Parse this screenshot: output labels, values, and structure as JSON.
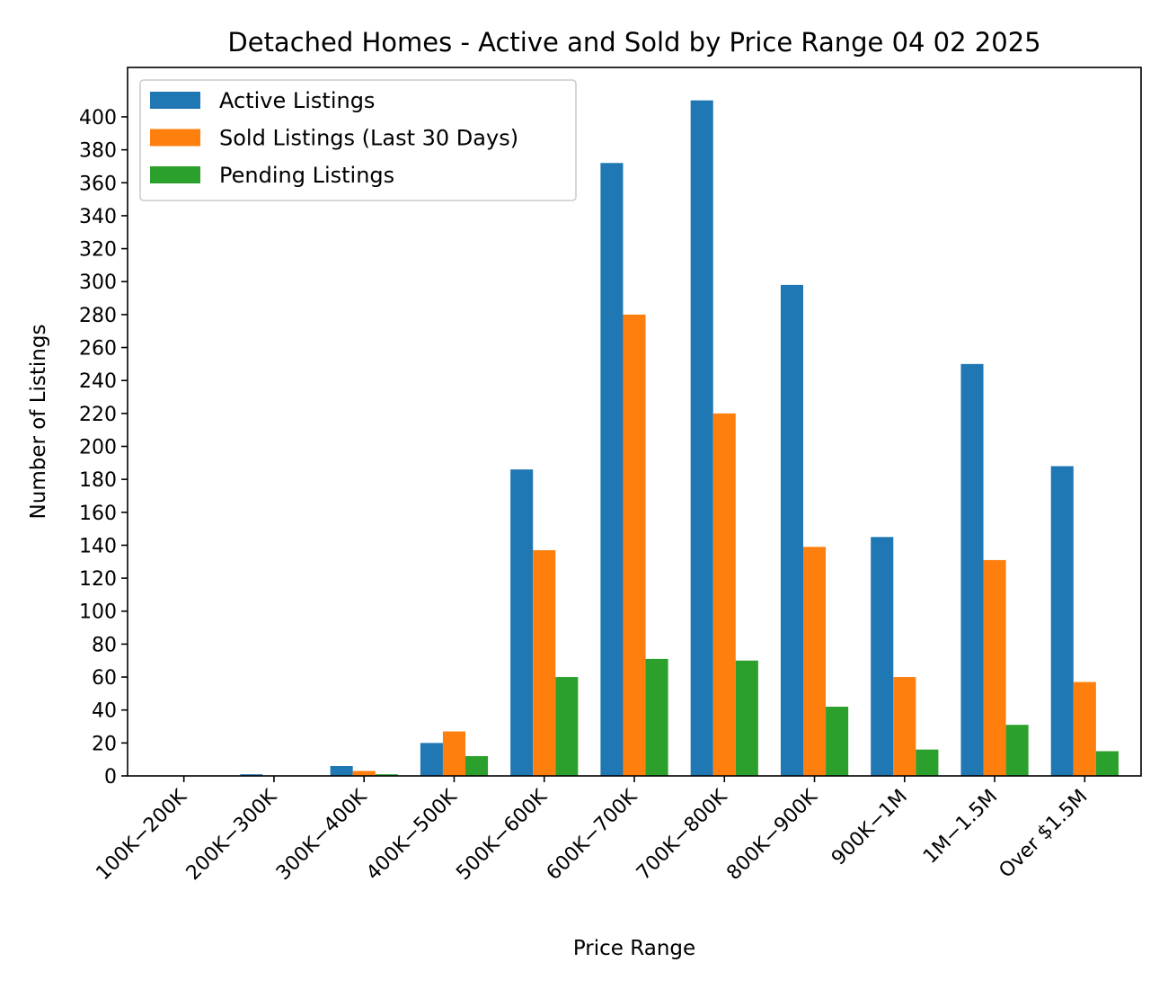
{
  "chart_data": {
    "type": "bar",
    "title": "Detached Homes - Active and Sold by Price Range 04 02 2025",
    "xlabel": "Price Range",
    "ylabel": "Number of Listings",
    "categories": [
      "100K−200K",
      "200K−300K",
      "300K−400K",
      "400K−500K",
      "500K−600K",
      "600K−700K",
      "700K−800K",
      "800K−900K",
      "900K−1M",
      "1M−1.5M",
      "Over $1.5M"
    ],
    "series": [
      {
        "name": "Active Listings",
        "color": "#1f77b4",
        "values": [
          0,
          1,
          6,
          20,
          186,
          372,
          410,
          298,
          145,
          250,
          188
        ]
      },
      {
        "name": "Sold Listings (Last 30 Days)",
        "color": "#ff7f0e",
        "values": [
          0,
          0,
          3,
          27,
          137,
          280,
          220,
          139,
          60,
          131,
          57
        ]
      },
      {
        "name": "Pending Listings",
        "color": "#2ca02c",
        "values": [
          0,
          0,
          1,
          12,
          60,
          71,
          70,
          42,
          16,
          31,
          15
        ]
      }
    ],
    "ylim": [
      0,
      430
    ],
    "yticks": [
      0,
      20,
      40,
      60,
      80,
      100,
      120,
      140,
      160,
      180,
      200,
      220,
      240,
      260,
      280,
      300,
      320,
      340,
      360,
      380,
      400
    ],
    "grid": false,
    "legend_position": "top-left"
  }
}
